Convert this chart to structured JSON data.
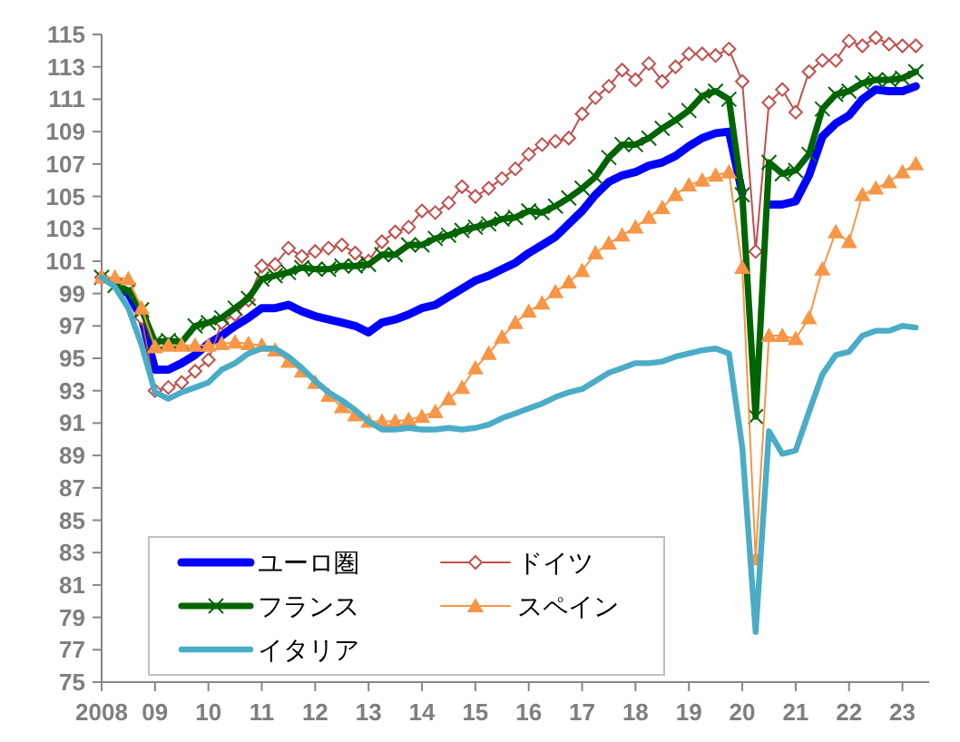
{
  "chart_data": {
    "type": "line",
    "x": [
      "2008-01",
      "2008-04",
      "2008-07",
      "2008-10",
      "2009-01",
      "2009-04",
      "2009-07",
      "2009-10",
      "2010-01",
      "2010-04",
      "2010-07",
      "2010-10",
      "2011-01",
      "2011-04",
      "2011-07",
      "2011-10",
      "2012-01",
      "2012-04",
      "2012-07",
      "2012-10",
      "2013-01",
      "2013-04",
      "2013-07",
      "2013-10",
      "2014-01",
      "2014-04",
      "2014-07",
      "2014-10",
      "2015-01",
      "2015-04",
      "2015-07",
      "2015-10",
      "2016-01",
      "2016-04",
      "2016-07",
      "2016-10",
      "2017-01",
      "2017-04",
      "2017-07",
      "2017-10",
      "2018-01",
      "2018-04",
      "2018-07",
      "2018-10",
      "2019-01",
      "2019-04",
      "2019-07",
      "2019-10",
      "2020-01",
      "2020-04",
      "2020-07",
      "2020-10",
      "2021-01",
      "2021-04",
      "2021-07",
      "2021-10",
      "2022-01",
      "2022-04",
      "2022-07",
      "2022-10",
      "2023-01",
      "2023-04"
    ],
    "series": [
      {
        "name": "ユーロ圏",
        "color": "#0000ff",
        "marker": "none",
        "values": [
          null,
          99.6,
          99.0,
          97.5,
          94.3,
          94.3,
          94.7,
          95.2,
          95.9,
          96.4,
          97.0,
          97.5,
          98.1,
          98.1,
          98.3,
          97.9,
          97.6,
          97.4,
          97.2,
          97.0,
          96.6,
          97.2,
          97.4,
          97.7,
          98.1,
          98.3,
          98.8,
          99.3,
          99.8,
          100.1,
          100.5,
          100.9,
          101.5,
          102.0,
          102.5,
          103.3,
          104.1,
          105.1,
          105.9,
          106.3,
          106.5,
          106.9,
          107.1,
          107.5,
          108.1,
          108.6,
          108.9,
          109.0,
          105.2,
          null,
          104.5,
          104.5,
          104.7,
          106.3,
          108.7,
          109.5,
          110.0,
          111.0,
          111.6,
          111.5,
          111.5,
          111.8
        ]
      },
      {
        "name": "ドイツ",
        "color": "#c0504d",
        "marker": "diamond",
        "values": [
          100,
          99.8,
          99.5,
          97.5,
          93.0,
          93.2,
          93.5,
          94.2,
          94.9,
          97.2,
          97.7,
          98.6,
          100.7,
          100.8,
          101.8,
          101.3,
          101.6,
          101.8,
          102.0,
          101.5,
          101.0,
          102.2,
          102.8,
          103.1,
          104.1,
          104.0,
          104.6,
          105.6,
          105.0,
          105.5,
          106.1,
          106.7,
          107.6,
          108.2,
          108.4,
          108.6,
          110.1,
          111.1,
          111.8,
          112.8,
          112.2,
          113.2,
          112.1,
          113.0,
          113.8,
          113.8,
          113.7,
          114.1,
          112.1,
          101.6,
          110.8,
          111.6,
          110.2,
          112.7,
          113.4,
          113.4,
          114.6,
          114.3,
          114.8,
          114.4,
          114.3,
          114.3
        ]
      },
      {
        "name": "フランス",
        "color": "#006400",
        "marker": "cross",
        "values": [
          100,
          99.5,
          99.2,
          98.0,
          96.0,
          96.1,
          96.0,
          97.0,
          97.2,
          97.5,
          98.1,
          98.7,
          99.9,
          100.1,
          100.3,
          100.6,
          100.5,
          100.5,
          100.7,
          100.7,
          100.8,
          101.4,
          101.4,
          102.0,
          102.0,
          102.4,
          102.6,
          102.9,
          103.1,
          103.3,
          103.6,
          103.7,
          104.1,
          104.0,
          104.4,
          104.9,
          105.5,
          106.2,
          107.4,
          108.2,
          108.2,
          108.6,
          109.2,
          109.7,
          110.3,
          111.2,
          111.5,
          111.0,
          105.1,
          91.4,
          107.1,
          106.4,
          106.6,
          107.6,
          110.4,
          111.3,
          111.5,
          112.0,
          112.2,
          112.2,
          112.3,
          112.7
        ]
      },
      {
        "name": "スペイン",
        "color": "#f79646",
        "marker": "triangle",
        "values": [
          100,
          100.0,
          99.9,
          98.1,
          95.7,
          95.8,
          95.8,
          95.8,
          95.8,
          95.9,
          96.0,
          95.9,
          95.8,
          95.5,
          94.8,
          94.2,
          93.5,
          92.7,
          92.0,
          91.5,
          91.1,
          91.1,
          91.1,
          91.2,
          91.4,
          91.7,
          92.5,
          93.2,
          94.4,
          95.3,
          96.3,
          97.2,
          97.9,
          98.4,
          99.1,
          99.7,
          100.4,
          101.5,
          102.1,
          102.6,
          103.1,
          103.7,
          104.3,
          105.1,
          105.7,
          106.0,
          106.3,
          106.5,
          100.6,
          82.6,
          96.4,
          96.4,
          96.2,
          97.5,
          100.5,
          102.8,
          102.2,
          105.1,
          105.5,
          105.9,
          106.5,
          107.0
        ]
      },
      {
        "name": "イタリア",
        "color": "#4bacc6",
        "marker": "none",
        "values": [
          100,
          99.4,
          98.1,
          95.8,
          92.9,
          92.5,
          92.9,
          93.2,
          93.5,
          94.3,
          94.7,
          95.3,
          95.6,
          95.6,
          95.1,
          94.4,
          93.6,
          92.9,
          92.4,
          91.8,
          91.1,
          90.6,
          90.6,
          90.7,
          90.6,
          90.6,
          90.7,
          90.6,
          90.7,
          90.9,
          91.3,
          91.6,
          91.9,
          92.2,
          92.6,
          92.9,
          93.1,
          93.6,
          94.1,
          94.4,
          94.7,
          94.7,
          94.8,
          95.1,
          95.3,
          95.5,
          95.6,
          95.3,
          89.5,
          78.1,
          90.5,
          89.1,
          89.3,
          91.7,
          94.0,
          95.2,
          95.4,
          96.4,
          96.7,
          96.7,
          97.0,
          96.9
        ]
      }
    ],
    "xlim": [
      "2008-01",
      "2023-07"
    ],
    "xticks": [
      {
        "value": "2008",
        "label": "2008"
      },
      {
        "value": "2009",
        "label": "09"
      },
      {
        "value": "2010",
        "label": "10"
      },
      {
        "value": "2011",
        "label": "11"
      },
      {
        "value": "2012",
        "label": "12"
      },
      {
        "value": "2013",
        "label": "13"
      },
      {
        "value": "2014",
        "label": "14"
      },
      {
        "value": "2015",
        "label": "15"
      },
      {
        "value": "2016",
        "label": "16"
      },
      {
        "value": "2017",
        "label": "17"
      },
      {
        "value": "2018",
        "label": "18"
      },
      {
        "value": "2019",
        "label": "19"
      },
      {
        "value": "2020",
        "label": "20"
      },
      {
        "value": "2021",
        "label": "21"
      },
      {
        "value": "2022",
        "label": "22"
      },
      {
        "value": "2023",
        "label": "23"
      }
    ],
    "ylim": [
      75,
      115
    ],
    "yticks": [
      75,
      77,
      79,
      81,
      83,
      85,
      87,
      89,
      91,
      93,
      95,
      97,
      99,
      101,
      103,
      105,
      107,
      109,
      111,
      113,
      115
    ],
    "grid": false,
    "legend": "bottom left"
  }
}
